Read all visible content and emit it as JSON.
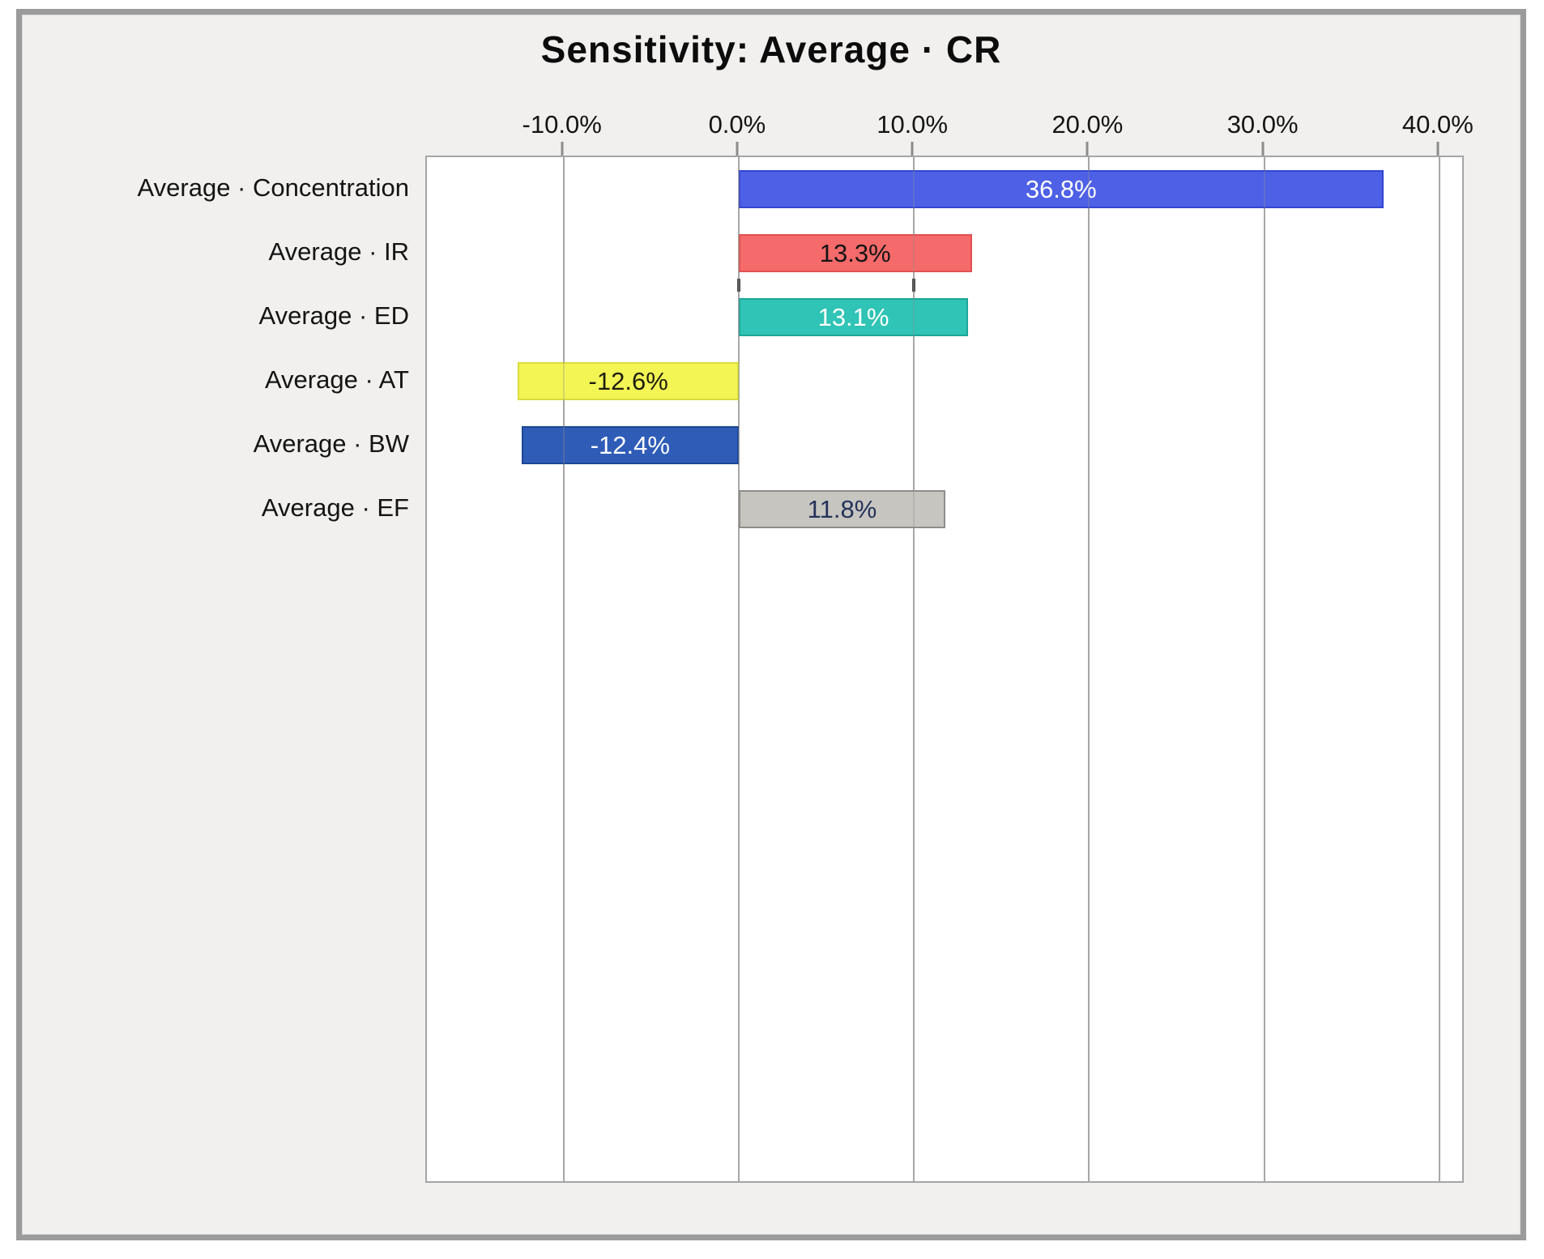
{
  "window": {
    "background": "#f1f0ee",
    "frame_color": "#9b9b9b",
    "plot_background": "#ffffff",
    "gridline_color": "#b3b1b0"
  },
  "chart_data": {
    "type": "bar",
    "orientation": "horizontal",
    "title": "Sensitivity: Average · CR",
    "xlabel": "",
    "ylabel": "",
    "xlim": [
      -17.8,
      41.3
    ],
    "grid": "vertical",
    "legend": "none",
    "categories": [
      "Average · Concentration",
      "Average · IR",
      "Average · ED",
      "Average · AT",
      "Average · BW",
      "Average · EF"
    ],
    "values": [
      36.8,
      13.3,
      13.1,
      -12.6,
      -12.4,
      11.8
    ],
    "xticks": [
      {
        "value": -10,
        "label": "-10.0%"
      },
      {
        "value": 0,
        "label": "0.0%"
      },
      {
        "value": 10,
        "label": "10.0%"
      },
      {
        "value": 20,
        "label": "20.0%"
      },
      {
        "value": 30,
        "label": "30.0%"
      },
      {
        "value": 40,
        "label": "40.0%"
      }
    ],
    "axis_marks": [
      0,
      10
    ],
    "bars": [
      {
        "category": "Average · Concentration",
        "value": 36.8,
        "label": "36.8%",
        "fill": "#4d60e6",
        "stroke": "#3347d1",
        "label_color": "#ffffff"
      },
      {
        "category": "Average · IR",
        "value": 13.3,
        "label": "13.3%",
        "fill": "#f56a6a",
        "stroke": "#e05151",
        "label_color": "#141414"
      },
      {
        "category": "Average · ED",
        "value": 13.1,
        "label": "13.1%",
        "fill": "#2fc4b5",
        "stroke": "#1da698",
        "label_color": "#ffffff"
      },
      {
        "category": "Average · AT",
        "value": -12.6,
        "label": "-12.6%",
        "fill": "#f3f554",
        "stroke": "#d9dc3c",
        "label_color": "#1d1d10"
      },
      {
        "category": "Average · BW",
        "value": -12.4,
        "label": "-12.4%",
        "fill": "#2e5cb7",
        "stroke": "#1e4795",
        "label_color": "#ffffff"
      },
      {
        "category": "Average · EF",
        "value": 11.8,
        "label": "11.8%",
        "fill": "#c6c5c0",
        "stroke": "#8e8d89",
        "label_color": "#25335a"
      }
    ]
  }
}
